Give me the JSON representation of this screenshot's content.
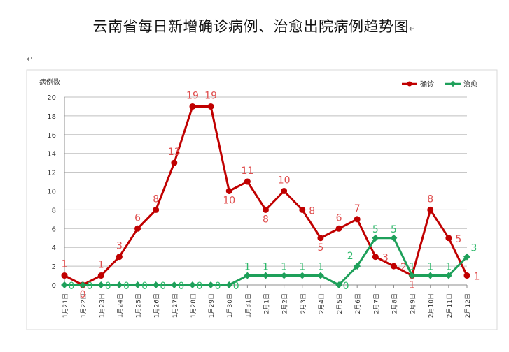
{
  "page": {
    "title": "云南省每日新增确诊病例、治愈出院病例趋势图",
    "title_mark": "↵",
    "para_mark": "↵"
  },
  "chart_data": {
    "type": "line",
    "ylabel": "病例数",
    "ylim": [
      0,
      20
    ],
    "yticks": [
      0,
      2,
      4,
      6,
      8,
      10,
      12,
      14,
      16,
      18,
      20
    ],
    "grid": true,
    "legend_position": "top-right",
    "categories": [
      "1月21日",
      "1月22日",
      "1月23日",
      "1月24日",
      "1月25日",
      "1月26日",
      "1月27日",
      "1月28日",
      "1月29日",
      "1月30日",
      "1月31日",
      "2月1日",
      "2月2日",
      "2月3日",
      "2月4日",
      "2月5日",
      "2月6日",
      "2月7日",
      "2月8日",
      "2月9日",
      "2月10日",
      "2月11日",
      "2月12日"
    ],
    "series": [
      {
        "name": "确诊",
        "color": "#c00000",
        "label_color": "#e05050",
        "values": [
          1,
          0,
          1,
          3,
          6,
          8,
          13,
          19,
          19,
          10,
          11,
          8,
          10,
          8,
          5,
          6,
          7,
          3,
          2,
          1,
          8,
          5,
          1
        ]
      },
      {
        "name": "治愈",
        "color": "#1ea05a",
        "label_color": "#2db86a",
        "values": [
          0,
          0,
          0,
          0,
          0,
          0,
          0,
          0,
          0,
          0,
          1,
          1,
          1,
          1,
          1,
          0,
          2,
          5,
          5,
          1,
          1,
          1,
          3
        ]
      }
    ]
  }
}
